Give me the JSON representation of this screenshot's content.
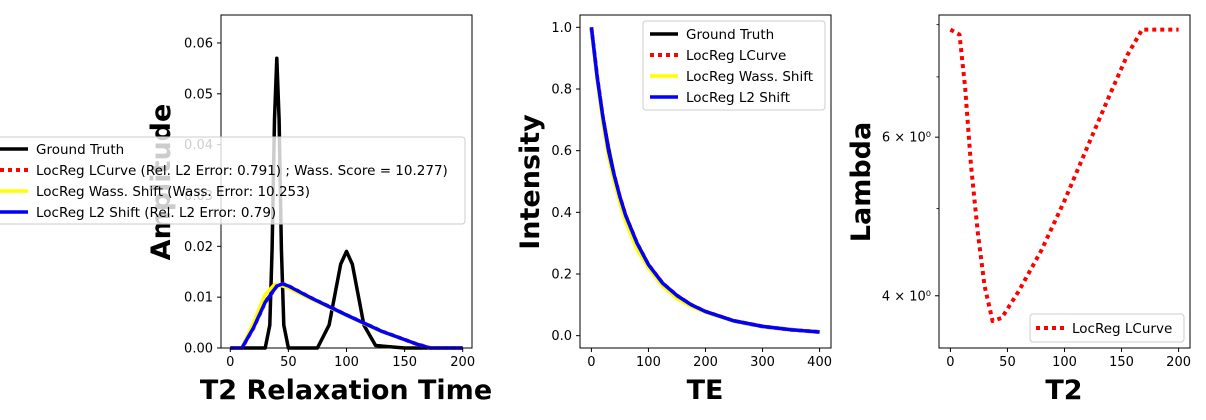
{
  "chart_data": [
    {
      "type": "line",
      "title": "",
      "xlabel": "T2 Relaxation Time",
      "ylabel": "Amplitude",
      "xlim": [
        -8,
        208
      ],
      "ylim": [
        0,
        0.0655
      ],
      "x_ticks": [
        "0",
        "50",
        "100",
        "150",
        "200"
      ],
      "x_tick_values": [
        0,
        50,
        100,
        150,
        200
      ],
      "y_ticks": [
        "0.00",
        "0.01",
        "0.02",
        "0.03",
        "0.04",
        "0.05",
        "0.06"
      ],
      "y_tick_values": [
        0,
        0.01,
        0.02,
        0.03,
        0.04,
        0.05,
        0.06
      ],
      "legend_position": "left, outside the axes",
      "series": [
        {
          "name": "Ground Truth",
          "color": "#000000",
          "style": "solid",
          "x": [
            0,
            30,
            34,
            36,
            38,
            40,
            42,
            44,
            46,
            50,
            60,
            75,
            85,
            90,
            95,
            100,
            105,
            110,
            115,
            125,
            150,
            200
          ],
          "y": [
            0,
            0.0,
            0.0045,
            0.0195,
            0.045,
            0.057,
            0.045,
            0.0195,
            0.0045,
            0.0,
            0.0,
            0.0,
            0.0045,
            0.0105,
            0.0165,
            0.019,
            0.0165,
            0.0105,
            0.0045,
            0.0005,
            0.0,
            0.0
          ]
        },
        {
          "name": "LocReg LCurve (Rel. L2 Error: 0.791) ; Wass. Score = 10.277)",
          "color": "#ff0000",
          "style": "dotted",
          "x": [
            0,
            10,
            20,
            30,
            40,
            45,
            50,
            70,
            100,
            130,
            160,
            172,
            200
          ],
          "y": [
            0,
            0.0,
            0.004,
            0.009,
            0.0122,
            0.0126,
            0.0122,
            0.0098,
            0.0065,
            0.0033,
            0.0008,
            0.0,
            0.0
          ]
        },
        {
          "name": "LocReg Wass. Shift (Wass. Error: 10.253)",
          "color": "#ffff00",
          "style": "solid",
          "x": [
            0,
            10,
            20,
            30,
            38,
            45,
            50,
            70,
            100,
            130,
            160,
            172,
            200
          ],
          "y": [
            0,
            0.0,
            0.005,
            0.0105,
            0.0125,
            0.0122,
            0.0118,
            0.0096,
            0.0064,
            0.0032,
            0.0008,
            0.0,
            0.0
          ]
        },
        {
          "name": "LocReg L2 Shift (Rel. L2 Error: 0.79)",
          "color": "#0000ff",
          "style": "solid",
          "x": [
            0,
            10,
            20,
            30,
            40,
            45,
            50,
            70,
            100,
            130,
            160,
            172,
            200
          ],
          "y": [
            0,
            0.0,
            0.004,
            0.009,
            0.0122,
            0.0126,
            0.0122,
            0.0098,
            0.0065,
            0.0033,
            0.0008,
            0.0,
            0.0
          ]
        }
      ]
    },
    {
      "type": "line",
      "title": "",
      "xlabel": "TE",
      "ylabel": "Intensity",
      "xlim": [
        -20,
        420
      ],
      "ylim": [
        -0.04,
        1.04
      ],
      "x_ticks": [
        "0",
        "100",
        "200",
        "300",
        "400"
      ],
      "x_tick_values": [
        0,
        100,
        200,
        300,
        400
      ],
      "y_ticks": [
        "0.0",
        "0.2",
        "0.4",
        "0.6",
        "0.8",
        "1.0"
      ],
      "y_tick_values": [
        0,
        0.2,
        0.4,
        0.6,
        0.8,
        1.0
      ],
      "legend_position": "upper right",
      "series": [
        {
          "name": "Ground Truth",
          "color": "#000000",
          "style": "solid",
          "x": [
            0,
            10,
            20,
            30,
            40,
            50,
            60,
            80,
            100,
            125,
            150,
            175,
            200,
            250,
            300,
            350,
            400
          ],
          "y": [
            1.0,
            0.84,
            0.71,
            0.61,
            0.52,
            0.45,
            0.39,
            0.3,
            0.23,
            0.17,
            0.13,
            0.1,
            0.078,
            0.048,
            0.03,
            0.019,
            0.012
          ]
        },
        {
          "name": "LocReg LCurve",
          "color": "#ff0000",
          "style": "dotted",
          "x": [
            0,
            10,
            20,
            30,
            40,
            50,
            60,
            80,
            100,
            125,
            150,
            175,
            200,
            250,
            300,
            350,
            400
          ],
          "y": [
            1.0,
            0.84,
            0.71,
            0.6,
            0.52,
            0.45,
            0.39,
            0.3,
            0.23,
            0.17,
            0.13,
            0.1,
            0.078,
            0.048,
            0.03,
            0.019,
            0.012
          ]
        },
        {
          "name": "LocReg Wass. Shift",
          "color": "#ffff00",
          "style": "solid",
          "x": [
            0,
            10,
            20,
            30,
            40,
            50,
            60,
            80,
            100,
            125,
            150,
            175,
            200,
            250,
            300,
            350,
            400
          ],
          "y": [
            1.0,
            0.83,
            0.69,
            0.58,
            0.5,
            0.43,
            0.37,
            0.28,
            0.22,
            0.16,
            0.12,
            0.095,
            0.075,
            0.047,
            0.03,
            0.019,
            0.012
          ]
        },
        {
          "name": "LocReg L2 Shift",
          "color": "#0000ff",
          "style": "solid",
          "x": [
            0,
            10,
            20,
            30,
            40,
            50,
            60,
            80,
            100,
            125,
            150,
            175,
            200,
            250,
            300,
            350,
            400
          ],
          "y": [
            1.0,
            0.84,
            0.71,
            0.6,
            0.52,
            0.45,
            0.39,
            0.3,
            0.23,
            0.17,
            0.13,
            0.1,
            0.078,
            0.048,
            0.03,
            0.019,
            0.012
          ]
        }
      ]
    },
    {
      "type": "line",
      "title": "",
      "xlabel": "T2",
      "ylabel": "Lambda",
      "xscale": "linear",
      "yscale": "log",
      "xlim": [
        -10,
        210
      ],
      "ylim": [
        3.5,
        8.2
      ],
      "x_ticks": [
        "0",
        "50",
        "100",
        "150",
        "200"
      ],
      "x_tick_values": [
        0,
        50,
        100,
        150,
        200
      ],
      "y_ticks": [
        "4 × 10⁰",
        "6 × 10⁰"
      ],
      "y_tick_values": [
        4,
        6
      ],
      "y_minor_tick_values": [
        5,
        7,
        8
      ],
      "legend_position": "lower right",
      "series": [
        {
          "name": "LocReg LCurve",
          "color": "#ff0000",
          "style": "dotted",
          "x": [
            0,
            8,
            13,
            18,
            24,
            30,
            37,
            45,
            60,
            80,
            100,
            120,
            140,
            155,
            168,
            175,
            190,
            200
          ],
          "y": [
            7.9,
            7.8,
            6.8,
            5.6,
            4.7,
            4.1,
            3.75,
            3.78,
            4.05,
            4.5,
            5.1,
            5.85,
            6.7,
            7.4,
            7.9,
            7.9,
            7.9,
            7.9
          ]
        }
      ]
    }
  ]
}
